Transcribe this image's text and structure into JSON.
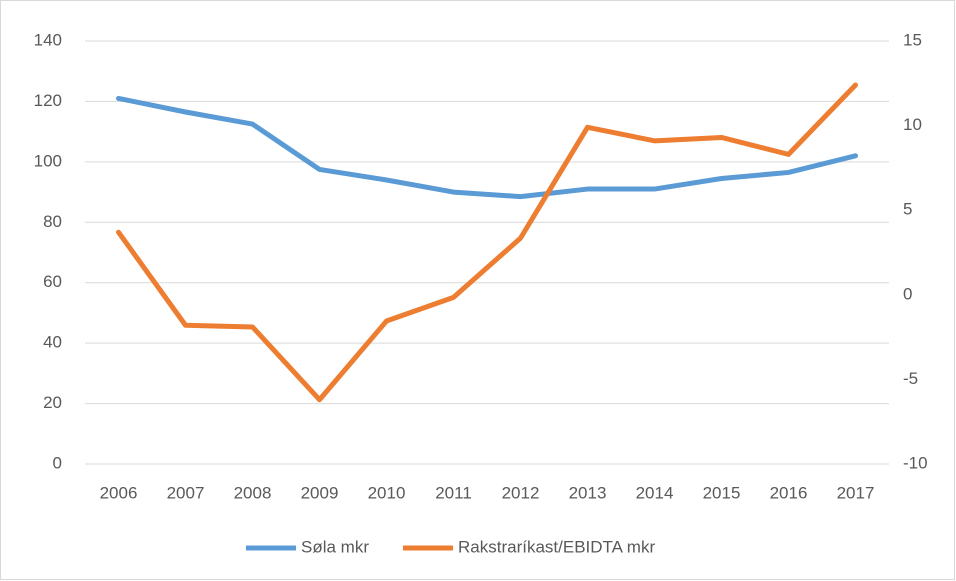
{
  "chart_data": {
    "type": "line",
    "categories": [
      "2006",
      "2007",
      "2008",
      "2009",
      "2010",
      "2011",
      "2012",
      "2013",
      "2014",
      "2015",
      "2016",
      "2017"
    ],
    "series": [
      {
        "name": "Søla mkr",
        "color": "#5b9bd5",
        "values": [
          121,
          116.5,
          112.5,
          97.5,
          94,
          90,
          88.5,
          91,
          91,
          94.5,
          96.5,
          102
        ]
      },
      {
        "name": "Rakstraríkast/EBIDTA mkr",
        "color": "#ed7d31",
        "axis": "y2",
        "values": [
          3.7,
          -1.8,
          -1.9,
          -6.2,
          -1.55,
          -0.15,
          3.35,
          9.9,
          9.1,
          9.3,
          8.3,
          12.4
        ]
      }
    ],
    "ylim": [
      0,
      140
    ],
    "yticks": [
      0,
      20,
      40,
      60,
      80,
      100,
      120,
      140
    ],
    "y2lim": [
      -10,
      15
    ],
    "y2ticks": [
      -10,
      -5,
      0,
      5,
      10,
      15
    ],
    "grid": true,
    "legend": "bottom"
  }
}
